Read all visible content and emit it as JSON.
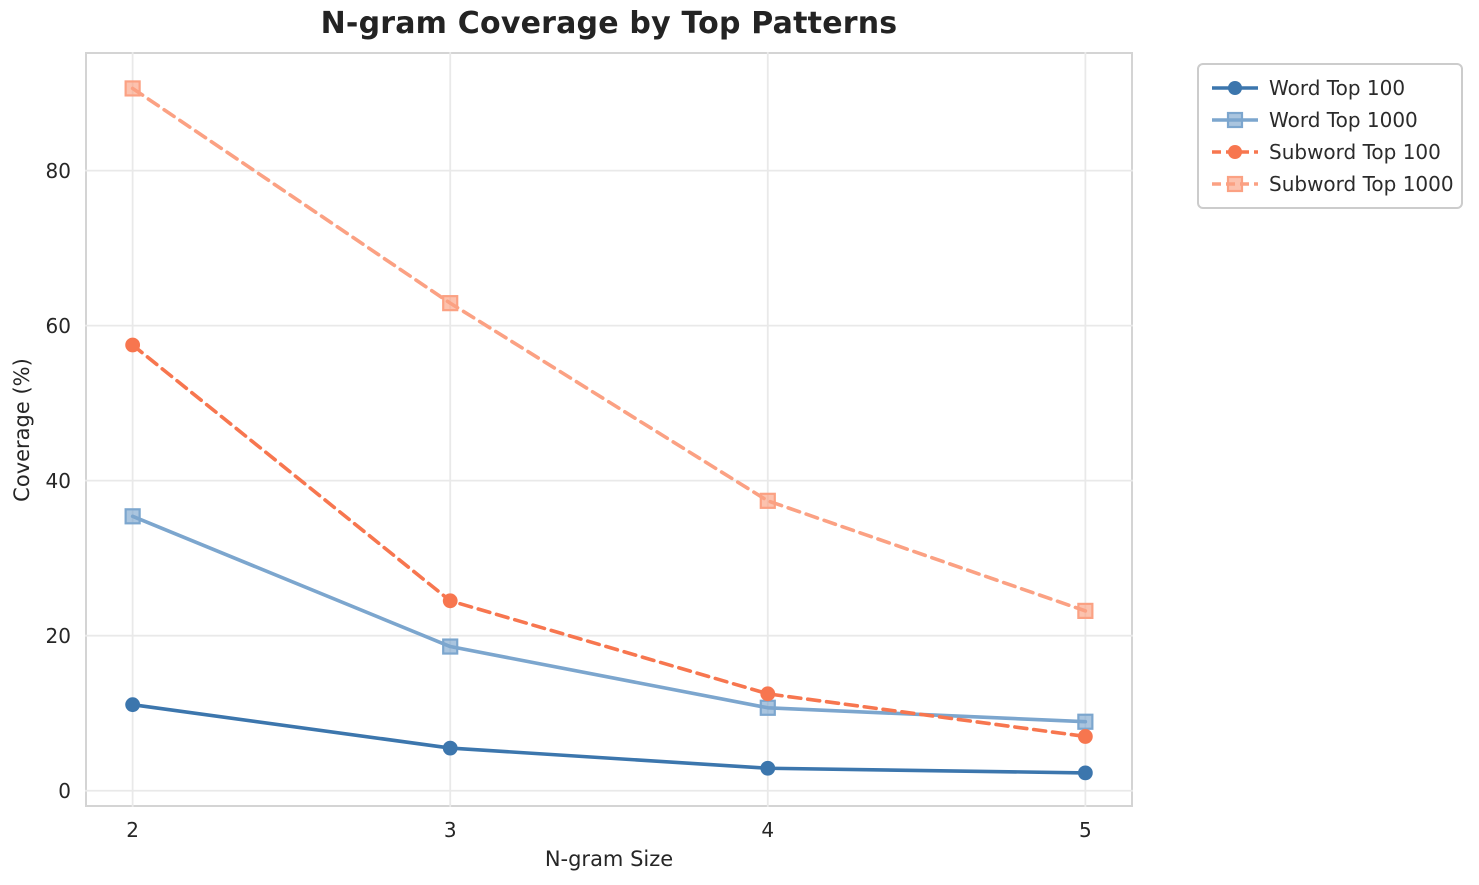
{
  "figure": {
    "background_color": "#ffffff",
    "grid_color": "#e9e9e9",
    "spine_color": "#d4d4d4",
    "text_color": "#262626"
  },
  "chart_data": {
    "type": "line",
    "title": "N-gram Coverage by Top Patterns",
    "xlabel": "N-gram Size",
    "ylabel": "Coverage (%)",
    "x": [
      2,
      3,
      4,
      5
    ],
    "xtick_labels": [
      "2",
      "3",
      "4",
      "5"
    ],
    "ytick_labels": [
      "0",
      "20",
      "40",
      "60",
      "80"
    ],
    "yticks": [
      0,
      20,
      40,
      60,
      80
    ],
    "xlim": [
      1.85,
      5.15
    ],
    "ylim": [
      -2.1,
      95.3
    ],
    "grid": true,
    "legend_position": "outside-upper-right",
    "series": [
      {
        "name": "Word Top 100",
        "values": [
          11.1,
          5.5,
          2.9,
          2.3
        ],
        "color": "#3c76ad",
        "linestyle": "solid",
        "marker": "circle"
      },
      {
        "name": "Word Top 1000",
        "values": [
          35.4,
          18.6,
          10.7,
          8.9
        ],
        "color": "#7ca6ce",
        "linestyle": "solid",
        "marker": "square"
      },
      {
        "name": "Subword Top 100",
        "values": [
          57.5,
          24.5,
          12.5,
          7.0
        ],
        "color": "#f7764f",
        "linestyle": "dashed",
        "marker": "circle"
      },
      {
        "name": "Subword Top 1000",
        "values": [
          90.6,
          62.9,
          37.4,
          23.2
        ],
        "color": "#fba183",
        "linestyle": "dashed",
        "marker": "square"
      }
    ]
  }
}
